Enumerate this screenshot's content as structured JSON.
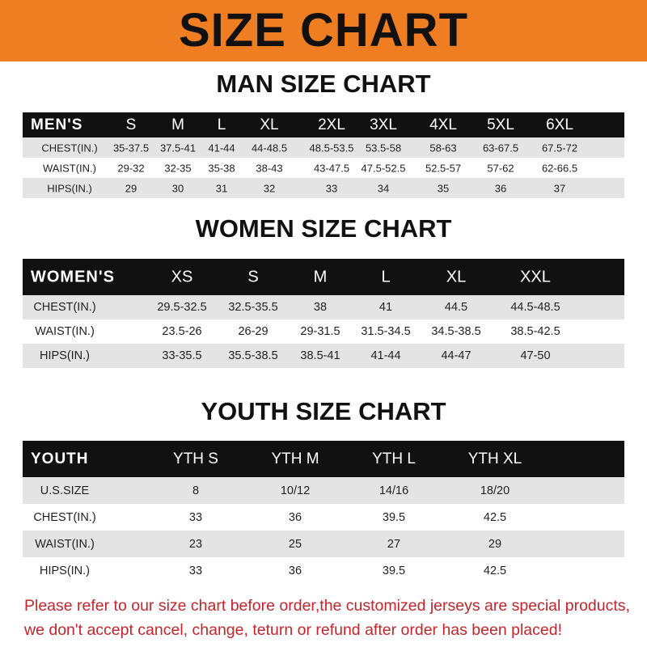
{
  "banner": {
    "title": "SIZE CHART",
    "color": "#ef7d22"
  },
  "men": {
    "title": "MAN SIZE CHART",
    "header": [
      "MEN'S",
      "S",
      "M",
      "L",
      "XL",
      "2XL",
      "3XL",
      "4XL",
      "5XL",
      "6XL"
    ],
    "rows": [
      [
        "CHEST(IN.)",
        "35-37.5",
        "37.5-41",
        "41-44",
        "44-48.5",
        "48.5-53.5",
        "53.5-58",
        "58-63",
        "63-67.5",
        "67.5-72"
      ],
      [
        "WAIST(IN.)",
        "29-32",
        "32-35",
        "35-38",
        "38-43",
        "43-47.5",
        "47.5-52.5",
        "52.5-57",
        "57-62",
        "62-66.5"
      ],
      [
        "HIPS(IN.)",
        "29",
        "30",
        "31",
        "32",
        "33",
        "34",
        "35",
        "36",
        "37"
      ]
    ]
  },
  "women": {
    "title": "WOMEN SIZE CHART",
    "header": [
      "WOMEN'S",
      "XS",
      "S",
      "M",
      "L",
      "XL",
      "XXL"
    ],
    "rows": [
      [
        "CHEST(IN.)",
        "29.5-32.5",
        "32.5-35.5",
        "38",
        "41",
        "44.5",
        "44.5-48.5"
      ],
      [
        "WAIST(IN.)",
        "23.5-26",
        "26-29",
        "29-31.5",
        "31.5-34.5",
        "34.5-38.5",
        "38.5-42.5"
      ],
      [
        "HIPS(IN.)",
        "33-35.5",
        "35.5-38.5",
        "38.5-41",
        "41-44",
        "44-47",
        "47-50"
      ]
    ]
  },
  "youth": {
    "title": "YOUTH SIZE CHART",
    "header": [
      "YOUTH",
      "YTH S",
      "YTH M",
      "YTH L",
      "YTH XL"
    ],
    "rows": [
      [
        "U.S.SIZE",
        "8",
        "10/12",
        "14/16",
        "18/20"
      ],
      [
        "CHEST(IN.)",
        "33",
        "36",
        "39.5",
        "42.5"
      ],
      [
        "WAIST(IN.)",
        "23",
        "25",
        "27",
        "29"
      ],
      [
        "HIPS(IN.)",
        "33",
        "36",
        "39.5",
        "42.5"
      ]
    ]
  },
  "footer": {
    "line1": "Please refer to our size chart before order,the customized jerseys are special products,",
    "line2": "we don't accept cancel, change, teturn or refund after order has been placed!"
  }
}
